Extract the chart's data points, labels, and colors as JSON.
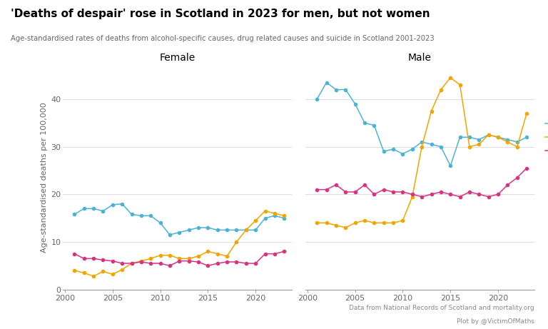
{
  "title": "'Deaths of despair' rose in Scotland in 2023 for men, but not women",
  "subtitle": "Age-standardised rates of deaths from alcohol-specific causes, drug related causes and suicide in Scotland 2001-2023",
  "ylabel": "Age-standardised deaths per 100,000",
  "footnote1": "Data from National Records of Scotland and mortality.org",
  "footnote2": "Plot by @VictimOfMaths",
  "colors": {
    "alcohol": "#4eb3d3",
    "drugs": "#f0a500",
    "suicide": "#d63384"
  },
  "years": [
    2001,
    2002,
    2003,
    2004,
    2005,
    2006,
    2007,
    2008,
    2009,
    2010,
    2011,
    2012,
    2013,
    2014,
    2015,
    2016,
    2017,
    2018,
    2019,
    2020,
    2021,
    2022,
    2023
  ],
  "female_alcohol": [
    15.8,
    17.0,
    17.0,
    16.5,
    17.8,
    18.0,
    15.8,
    15.5,
    15.5,
    14.0,
    11.5,
    12.0,
    12.5,
    13.0,
    13.0,
    12.5,
    12.5,
    12.5,
    12.5,
    12.5,
    15.0,
    15.5,
    15.0
  ],
  "female_drugs": [
    4.0,
    3.5,
    2.8,
    3.8,
    3.2,
    4.2,
    5.5,
    6.0,
    6.5,
    7.2,
    7.2,
    6.5,
    6.5,
    7.0,
    8.0,
    7.5,
    7.0,
    10.0,
    12.5,
    14.5,
    16.5,
    16.0,
    15.5
  ],
  "female_suicide": [
    7.5,
    6.5,
    6.5,
    6.2,
    6.0,
    5.5,
    5.5,
    5.8,
    5.5,
    5.5,
    5.0,
    6.0,
    6.0,
    5.8,
    5.0,
    5.5,
    5.8,
    5.8,
    5.5,
    5.5,
    7.5,
    7.5,
    8.0
  ],
  "male_alcohol": [
    40.0,
    43.5,
    42.0,
    42.0,
    39.0,
    35.0,
    34.5,
    29.0,
    29.5,
    28.5,
    29.5,
    31.0,
    30.5,
    30.0,
    26.0,
    32.0,
    32.0,
    31.5,
    32.5,
    32.0,
    31.5,
    31.0,
    32.0
  ],
  "male_drugs": [
    14.0,
    14.0,
    13.5,
    13.0,
    14.0,
    14.5,
    14.0,
    14.0,
    14.0,
    14.5,
    19.5,
    30.0,
    37.5,
    42.0,
    44.5,
    43.0,
    30.0,
    30.5,
    32.5,
    32.0,
    31.0,
    30.0,
    37.0
  ],
  "male_suicide": [
    21.0,
    21.0,
    22.0,
    20.5,
    20.5,
    22.0,
    20.0,
    21.0,
    20.5,
    20.5,
    20.0,
    19.5,
    20.0,
    20.5,
    20.0,
    19.5,
    20.5,
    20.0,
    19.5,
    20.0,
    22.0,
    23.5,
    25.5
  ],
  "ylim": [
    0,
    47
  ],
  "yticks": [
    0,
    10,
    20,
    30,
    40
  ],
  "xticks": [
    2000,
    2005,
    2010,
    2015,
    2020
  ]
}
